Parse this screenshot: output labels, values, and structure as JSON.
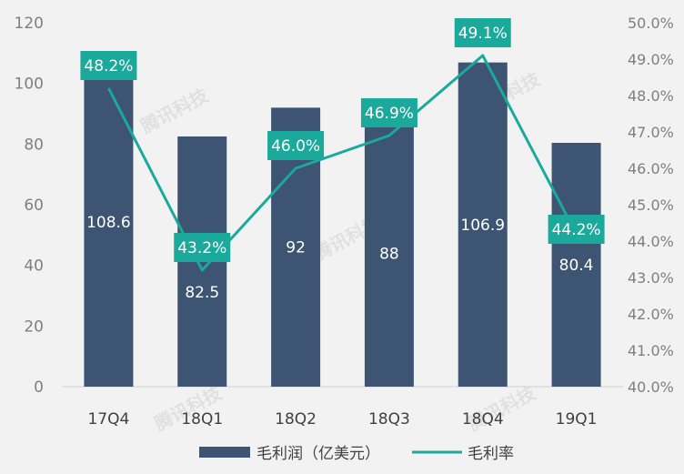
{
  "chart_data": {
    "type": "bar",
    "categories": [
      "17Q4",
      "18Q1",
      "18Q2",
      "18Q3",
      "18Q4",
      "19Q1"
    ],
    "series": [
      {
        "name": "毛利润（亿美元）",
        "type": "bar",
        "axis": "left",
        "values": [
          108.6,
          82.5,
          92,
          88,
          106.9,
          80.4
        ],
        "labels": [
          "108.6",
          "82.5",
          "92",
          "88",
          "106.9",
          "80.4"
        ],
        "color": "#3d5572"
      },
      {
        "name": "毛利率",
        "type": "line",
        "axis": "right",
        "values": [
          48.2,
          43.2,
          46.0,
          46.9,
          49.1,
          44.2
        ],
        "labels": [
          "48.2%",
          "43.2%",
          "46.0%",
          "46.9%",
          "49.1%",
          "44.2%"
        ],
        "color": "#1aa99a"
      }
    ],
    "y_left": {
      "ylim": [
        0,
        120
      ],
      "ticks": [
        0,
        20,
        40,
        60,
        80,
        100,
        120
      ],
      "tick_labels": [
        "0",
        "20",
        "40",
        "60",
        "80",
        "100",
        "120"
      ]
    },
    "y_right": {
      "ylim": [
        40,
        50
      ],
      "ticks": [
        40,
        41,
        42,
        43,
        44,
        45,
        46,
        47,
        48,
        49,
        50
      ],
      "tick_labels": [
        "40.0%",
        "41.0%",
        "42.0%",
        "43.0%",
        "44.0%",
        "45.0%",
        "46.0%",
        "47.0%",
        "48.0%",
        "49.0%",
        "50.0%"
      ]
    },
    "watermark": "腾讯科技",
    "grid": false,
    "legend_position": "bottom",
    "colors": {
      "background": "#f2f2f2",
      "tick_text": "#7f7f7f",
      "category_text": "#404040",
      "bar_label_text": "#ffffff",
      "line_label_bg": "#1aa99a",
      "line_label_text": "#ffffff"
    }
  }
}
